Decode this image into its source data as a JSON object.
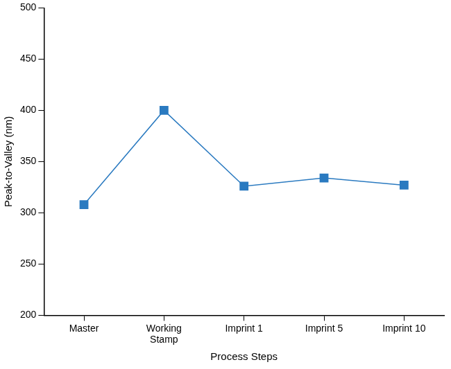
{
  "chart_data": {
    "type": "line",
    "categories": [
      "Master",
      "Working Stamp",
      "Imprint 1",
      "Imprint 5",
      "Imprint 10"
    ],
    "values": [
      308,
      400,
      326,
      334,
      327
    ],
    "color": "#2a7ac0",
    "marker": "square",
    "line_style": "solid",
    "x_label": "Process Steps",
    "y_label": "Peak-to-Valley (nm)",
    "ylim": [
      200,
      500
    ],
    "yticks": [
      200,
      250,
      300,
      350,
      400,
      450,
      500
    ],
    "grid": false
  }
}
